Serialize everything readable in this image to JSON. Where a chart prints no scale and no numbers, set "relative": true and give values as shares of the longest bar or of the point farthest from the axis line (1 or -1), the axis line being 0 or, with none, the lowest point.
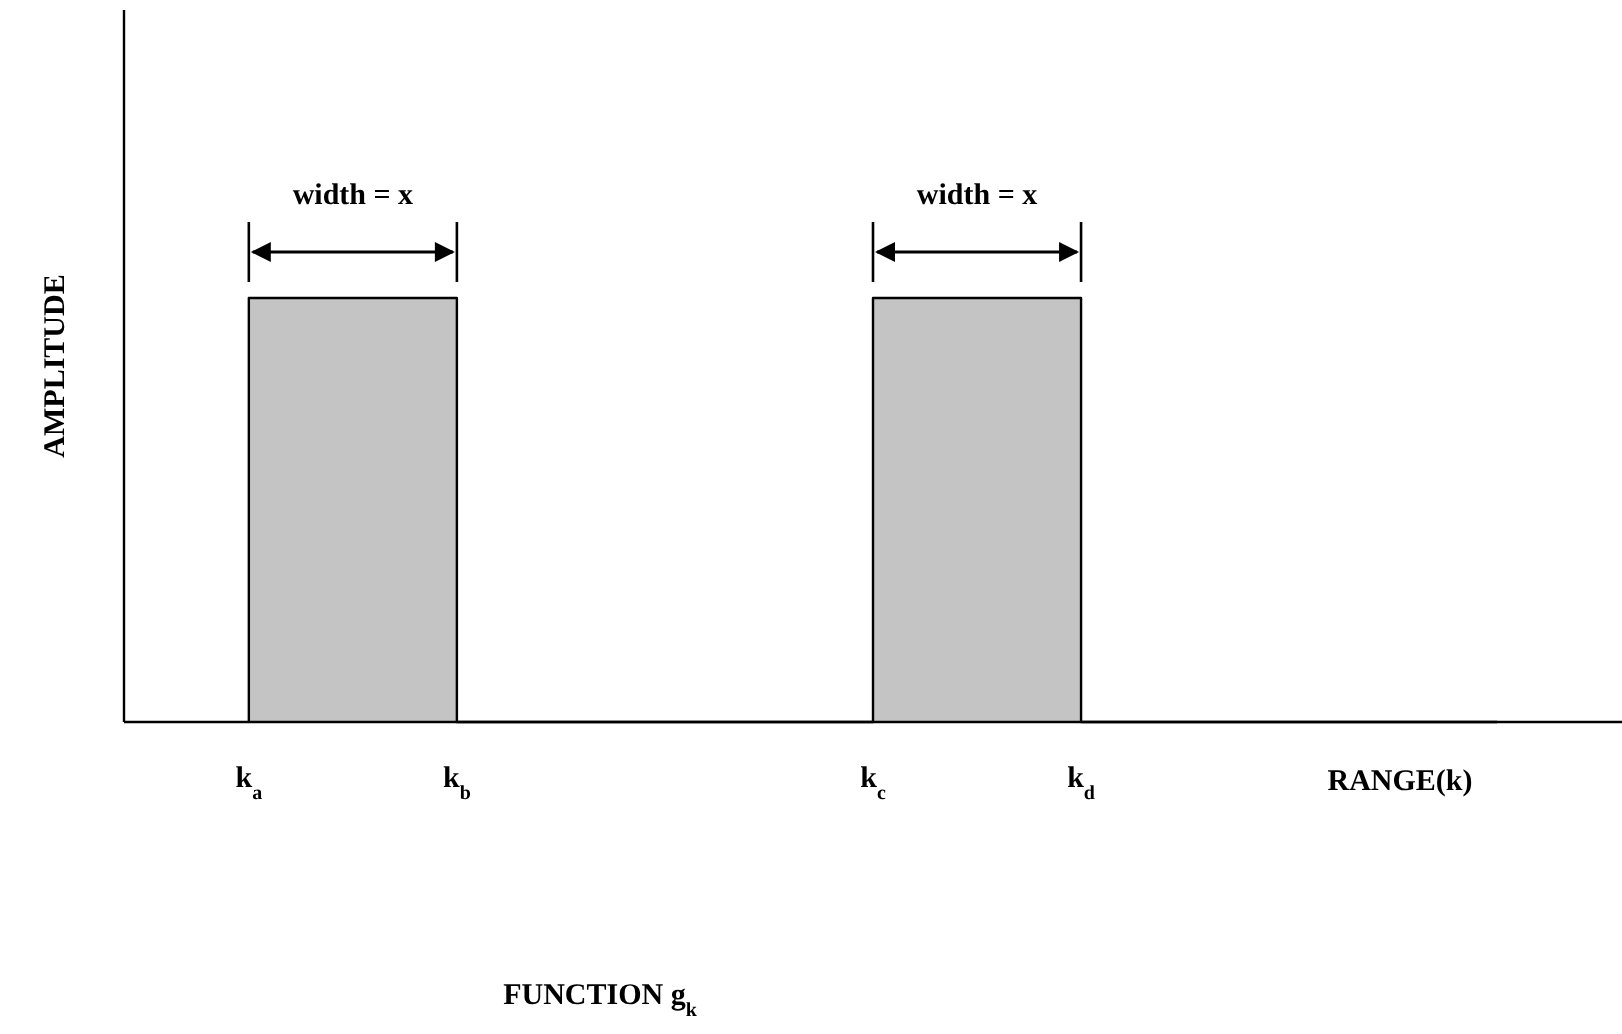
{
  "chart_data": {
    "type": "step",
    "title": "FUNCTION g$_{k}$",
    "xlabel": "RANGE(k)",
    "ylabel": "AMPLITUDE",
    "relative": true,
    "categories": [
      "k$_{a}$",
      "k$_{b}$",
      null,
      "k$_{c}$",
      "k$_{d}$",
      null,
      null
    ],
    "series": [
      {
        "color": "#000000",
        "values": [
          0,
          1,
          0,
          0,
          1,
          0,
          0
        ]
      }
    ],
    "annotations": [
      "width = x",
      "width = x"
    ]
  }
}
